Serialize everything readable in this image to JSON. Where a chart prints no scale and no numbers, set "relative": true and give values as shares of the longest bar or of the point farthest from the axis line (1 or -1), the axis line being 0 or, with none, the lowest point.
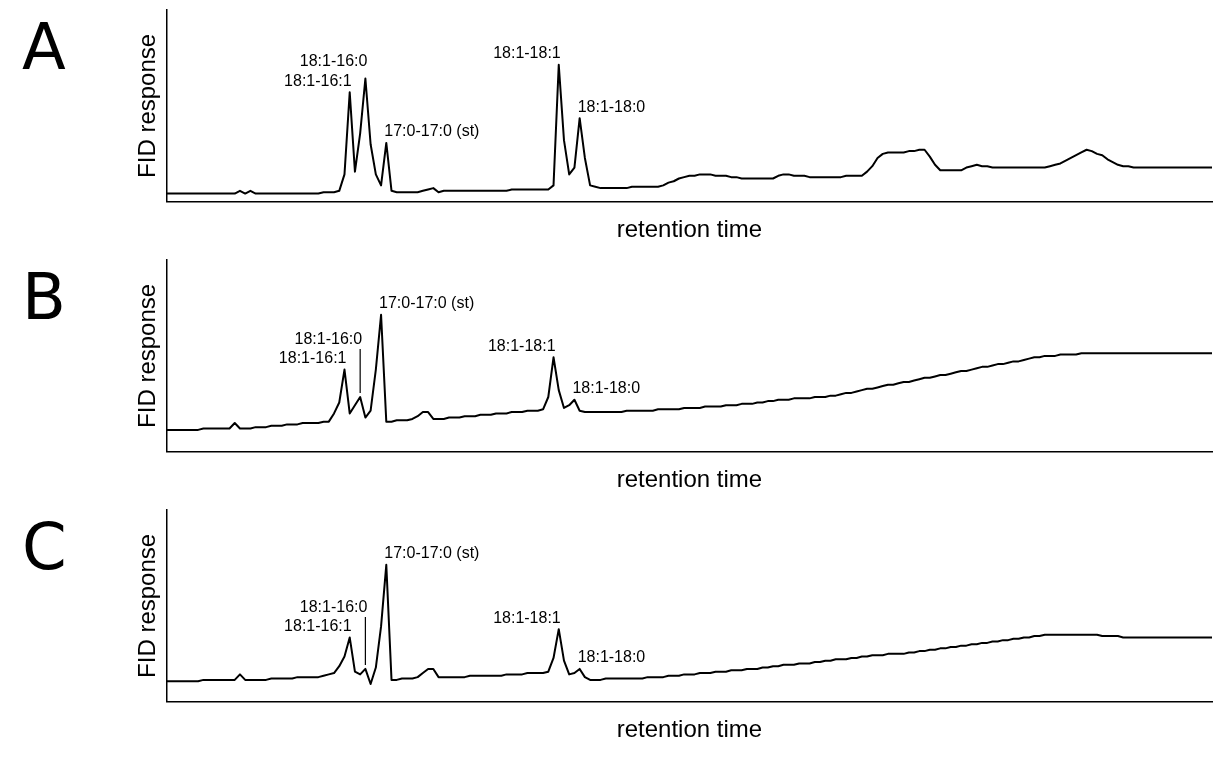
{
  "chart_data": [
    {
      "type": "line",
      "title": "A",
      "xlabel": "retention time",
      "ylabel": "FID response",
      "relative": true,
      "grid": false,
      "legend": false,
      "marker": "none",
      "line_style": "solid",
      "categories": [
        null,
        null,
        null,
        null,
        null,
        null,
        null,
        null,
        null,
        null,
        null,
        null,
        null,
        null,
        null,
        null,
        null,
        null,
        null,
        null,
        null,
        null,
        null,
        null,
        null,
        null,
        null,
        null,
        null,
        null,
        null,
        null,
        null,
        null,
        null,
        null,
        null,
        null,
        null,
        null,
        null,
        null,
        null,
        null,
        null,
        null,
        null,
        null,
        null,
        null,
        null,
        null,
        null,
        null,
        null,
        null,
        null,
        null,
        null,
        null,
        null,
        null,
        null,
        null,
        null,
        null,
        null,
        null,
        null,
        null,
        null,
        null,
        null,
        null,
        null,
        null,
        null,
        null,
        null,
        null,
        null,
        null,
        null,
        null,
        null,
        null,
        null,
        null,
        null,
        null,
        null,
        null,
        null,
        null,
        null,
        null,
        null,
        null,
        null,
        null,
        null,
        null,
        null,
        null,
        null,
        null,
        null,
        null,
        null,
        null,
        null,
        null,
        null,
        null,
        null,
        null,
        null,
        null,
        null,
        null,
        null,
        null,
        null,
        null,
        null,
        null,
        null,
        null,
        null,
        null,
        null,
        null,
        null,
        null,
        null,
        null,
        null,
        null,
        null,
        null,
        null,
        null,
        null,
        null,
        null,
        null,
        null,
        null,
        null,
        null,
        null,
        null,
        null,
        null,
        null,
        null,
        null,
        null,
        null,
        null,
        null,
        null,
        null,
        null,
        null,
        null,
        null,
        null,
        null,
        null,
        null,
        null,
        null,
        null,
        null,
        null,
        null,
        null,
        null,
        null,
        null,
        null,
        null,
        null,
        null,
        null,
        null,
        null,
        null,
        null,
        null,
        null,
        null,
        null,
        null,
        null,
        null,
        null,
        null,
        null,
        null
      ],
      "series": [
        {
          "color": "#000000",
          "values": [
            0.06,
            0.06,
            0.06,
            0.06,
            0.06,
            0.06,
            0.06,
            0.06,
            0.06,
            0.06,
            0.06,
            0.06,
            0.06,
            0.06,
            0.08,
            0.06,
            0.08,
            0.06,
            0.06,
            0.06,
            0.06,
            0.06,
            0.06,
            0.06,
            0.06,
            0.06,
            0.06,
            0.06,
            0.06,
            0.06,
            0.07,
            0.07,
            0.07,
            0.08,
            0.2,
            0.8,
            0.22,
            0.5,
            0.9,
            0.42,
            0.2,
            0.12,
            0.43,
            0.08,
            0.07,
            0.07,
            0.07,
            0.07,
            0.07,
            0.08,
            0.09,
            0.1,
            0.07,
            0.08,
            0.08,
            0.08,
            0.08,
            0.08,
            0.08,
            0.08,
            0.08,
            0.08,
            0.08,
            0.08,
            0.08,
            0.08,
            0.09,
            0.09,
            0.09,
            0.09,
            0.09,
            0.09,
            0.09,
            0.09,
            0.12,
            1.0,
            0.45,
            0.2,
            0.25,
            0.61,
            0.32,
            0.12,
            0.11,
            0.1,
            0.1,
            0.1,
            0.1,
            0.1,
            0.1,
            0.11,
            0.11,
            0.11,
            0.11,
            0.11,
            0.11,
            0.12,
            0.14,
            0.15,
            0.17,
            0.18,
            0.19,
            0.19,
            0.2,
            0.2,
            0.2,
            0.19,
            0.19,
            0.19,
            0.18,
            0.18,
            0.17,
            0.17,
            0.17,
            0.17,
            0.17,
            0.17,
            0.17,
            0.19,
            0.2,
            0.2,
            0.19,
            0.19,
            0.19,
            0.18,
            0.18,
            0.18,
            0.18,
            0.18,
            0.18,
            0.18,
            0.19,
            0.19,
            0.19,
            0.19,
            0.22,
            0.26,
            0.32,
            0.35,
            0.36,
            0.36,
            0.36,
            0.36,
            0.37,
            0.37,
            0.38,
            0.38,
            0.33,
            0.27,
            0.23,
            0.23,
            0.23,
            0.23,
            0.23,
            0.25,
            0.26,
            0.27,
            0.26,
            0.26,
            0.25,
            0.25,
            0.25,
            0.25,
            0.25,
            0.25,
            0.25,
            0.25,
            0.25,
            0.25,
            0.25,
            0.26,
            0.27,
            0.28,
            0.3,
            0.32,
            0.34,
            0.36,
            0.38,
            0.37,
            0.35,
            0.34,
            0.31,
            0.29,
            0.27,
            0.26,
            0.26,
            0.25,
            0.25,
            0.25,
            0.25,
            0.25,
            0.25,
            0.25,
            0.25,
            0.25,
            0.25,
            0.25,
            0.25,
            0.25,
            0.25,
            0.25,
            0.25
          ]
        }
      ],
      "annotations": [
        "18:1-16:1",
        "18:1-16:0",
        "17:0-17:0 (st)",
        "18:1-18:1",
        "18:1-18:0"
      ]
    },
    {
      "type": "line",
      "title": "B",
      "xlabel": "retention time",
      "ylabel": "FID response",
      "relative": true,
      "grid": false,
      "legend": false,
      "marker": "none",
      "line_style": "solid",
      "categories": [
        null,
        null,
        null,
        null,
        null,
        null,
        null,
        null,
        null,
        null,
        null,
        null,
        null,
        null,
        null,
        null,
        null,
        null,
        null,
        null,
        null,
        null,
        null,
        null,
        null,
        null,
        null,
        null,
        null,
        null,
        null,
        null,
        null,
        null,
        null,
        null,
        null,
        null,
        null,
        null,
        null,
        null,
        null,
        null,
        null,
        null,
        null,
        null,
        null,
        null,
        null,
        null,
        null,
        null,
        null,
        null,
        null,
        null,
        null,
        null,
        null,
        null,
        null,
        null,
        null,
        null,
        null,
        null,
        null,
        null,
        null,
        null,
        null,
        null,
        null,
        null,
        null,
        null,
        null,
        null,
        null,
        null,
        null,
        null,
        null,
        null,
        null,
        null,
        null,
        null,
        null,
        null,
        null,
        null,
        null,
        null,
        null,
        null,
        null,
        null,
        null,
        null,
        null,
        null,
        null,
        null,
        null,
        null,
        null,
        null,
        null,
        null,
        null,
        null,
        null,
        null,
        null,
        null,
        null,
        null,
        null,
        null,
        null,
        null,
        null,
        null,
        null,
        null,
        null,
        null,
        null,
        null,
        null,
        null,
        null,
        null,
        null,
        null,
        null,
        null,
        null,
        null,
        null,
        null,
        null,
        null,
        null,
        null,
        null,
        null,
        null,
        null,
        null,
        null,
        null,
        null,
        null,
        null,
        null,
        null,
        null,
        null,
        null,
        null,
        null,
        null,
        null,
        null,
        null,
        null,
        null,
        null,
        null,
        null,
        null,
        null,
        null,
        null,
        null,
        null,
        null,
        null,
        null,
        null,
        null,
        null,
        null,
        null,
        null,
        null,
        null,
        null,
        null,
        null,
        null,
        null,
        null,
        null,
        null,
        null,
        null
      ],
      "series": [
        {
          "color": "#000000",
          "values": [
            0.16,
            0.16,
            0.16,
            0.16,
            0.16,
            0.16,
            0.16,
            0.17,
            0.17,
            0.17,
            0.17,
            0.17,
            0.17,
            0.21,
            0.17,
            0.17,
            0.17,
            0.18,
            0.18,
            0.18,
            0.19,
            0.19,
            0.19,
            0.2,
            0.2,
            0.2,
            0.21,
            0.21,
            0.21,
            0.21,
            0.22,
            0.22,
            0.28,
            0.36,
            0.6,
            0.28,
            0.34,
            0.4,
            0.25,
            0.3,
            0.6,
            1.0,
            0.22,
            0.22,
            0.23,
            0.23,
            0.23,
            0.24,
            0.26,
            0.29,
            0.29,
            0.24,
            0.24,
            0.24,
            0.25,
            0.25,
            0.25,
            0.26,
            0.26,
            0.26,
            0.27,
            0.27,
            0.27,
            0.28,
            0.28,
            0.28,
            0.29,
            0.29,
            0.29,
            0.3,
            0.3,
            0.3,
            0.31,
            0.4,
            0.69,
            0.45,
            0.32,
            0.34,
            0.38,
            0.3,
            0.29,
            0.29,
            0.29,
            0.29,
            0.29,
            0.29,
            0.29,
            0.29,
            0.3,
            0.3,
            0.3,
            0.3,
            0.3,
            0.3,
            0.31,
            0.31,
            0.31,
            0.31,
            0.31,
            0.32,
            0.32,
            0.32,
            0.32,
            0.33,
            0.33,
            0.33,
            0.33,
            0.34,
            0.34,
            0.34,
            0.35,
            0.35,
            0.35,
            0.36,
            0.36,
            0.37,
            0.37,
            0.38,
            0.38,
            0.38,
            0.39,
            0.39,
            0.39,
            0.39,
            0.4,
            0.4,
            0.4,
            0.41,
            0.41,
            0.42,
            0.43,
            0.43,
            0.44,
            0.45,
            0.46,
            0.46,
            0.47,
            0.48,
            0.49,
            0.49,
            0.5,
            0.51,
            0.51,
            0.52,
            0.53,
            0.54,
            0.54,
            0.55,
            0.56,
            0.56,
            0.57,
            0.58,
            0.59,
            0.59,
            0.6,
            0.61,
            0.62,
            0.62,
            0.63,
            0.64,
            0.64,
            0.65,
            0.66,
            0.66,
            0.67,
            0.68,
            0.69,
            0.69,
            0.7,
            0.7,
            0.7,
            0.71,
            0.71,
            0.71,
            0.71,
            0.72,
            0.72,
            0.72,
            0.72,
            0.72,
            0.72,
            0.72,
            0.72,
            0.72,
            0.72,
            0.72,
            0.72,
            0.72,
            0.72,
            0.72,
            0.72,
            0.72,
            0.72,
            0.72,
            0.72,
            0.72,
            0.72,
            0.72,
            0.72,
            0.72,
            0.72
          ]
        }
      ],
      "annotations": [
        "18:1-16:1",
        "18:1-16:0",
        "17:0-17:0 (st)",
        "18:1-18:1",
        "18:1-18:0"
      ]
    },
    {
      "type": "line",
      "title": "C",
      "xlabel": "retention time",
      "ylabel": "FID response",
      "relative": true,
      "grid": false,
      "legend": false,
      "marker": "none",
      "line_style": "solid",
      "categories": [
        null,
        null,
        null,
        null,
        null,
        null,
        null,
        null,
        null,
        null,
        null,
        null,
        null,
        null,
        null,
        null,
        null,
        null,
        null,
        null,
        null,
        null,
        null,
        null,
        null,
        null,
        null,
        null,
        null,
        null,
        null,
        null,
        null,
        null,
        null,
        null,
        null,
        null,
        null,
        null,
        null,
        null,
        null,
        null,
        null,
        null,
        null,
        null,
        null,
        null,
        null,
        null,
        null,
        null,
        null,
        null,
        null,
        null,
        null,
        null,
        null,
        null,
        null,
        null,
        null,
        null,
        null,
        null,
        null,
        null,
        null,
        null,
        null,
        null,
        null,
        null,
        null,
        null,
        null,
        null,
        null,
        null,
        null,
        null,
        null,
        null,
        null,
        null,
        null,
        null,
        null,
        null,
        null,
        null,
        null,
        null,
        null,
        null,
        null,
        null,
        null,
        null,
        null,
        null,
        null,
        null,
        null,
        null,
        null,
        null,
        null,
        null,
        null,
        null,
        null,
        null,
        null,
        null,
        null,
        null,
        null,
        null,
        null,
        null,
        null,
        null,
        null,
        null,
        null,
        null,
        null,
        null,
        null,
        null,
        null,
        null,
        null,
        null,
        null,
        null,
        null,
        null,
        null,
        null,
        null,
        null,
        null,
        null,
        null,
        null,
        null,
        null,
        null,
        null,
        null,
        null,
        null,
        null,
        null,
        null,
        null,
        null,
        null,
        null,
        null,
        null,
        null,
        null,
        null,
        null,
        null,
        null,
        null,
        null,
        null,
        null,
        null,
        null,
        null,
        null,
        null,
        null,
        null,
        null,
        null,
        null,
        null,
        null,
        null,
        null,
        null,
        null,
        null,
        null,
        null,
        null,
        null,
        null,
        null,
        null,
        null
      ],
      "series": [
        {
          "color": "#000000",
          "values": [
            0.15,
            0.15,
            0.15,
            0.15,
            0.15,
            0.15,
            0.15,
            0.16,
            0.16,
            0.16,
            0.16,
            0.16,
            0.16,
            0.16,
            0.2,
            0.16,
            0.16,
            0.16,
            0.16,
            0.16,
            0.17,
            0.17,
            0.17,
            0.17,
            0.17,
            0.18,
            0.18,
            0.18,
            0.18,
            0.18,
            0.19,
            0.2,
            0.21,
            0.26,
            0.33,
            0.47,
            0.22,
            0.2,
            0.24,
            0.13,
            0.25,
            0.55,
            1.0,
            0.16,
            0.16,
            0.17,
            0.17,
            0.17,
            0.18,
            0.21,
            0.24,
            0.24,
            0.18,
            0.18,
            0.18,
            0.18,
            0.18,
            0.18,
            0.19,
            0.19,
            0.19,
            0.19,
            0.19,
            0.19,
            0.19,
            0.2,
            0.2,
            0.2,
            0.2,
            0.21,
            0.21,
            0.21,
            0.21,
            0.22,
            0.32,
            0.53,
            0.3,
            0.2,
            0.21,
            0.24,
            0.18,
            0.16,
            0.16,
            0.16,
            0.17,
            0.17,
            0.17,
            0.17,
            0.17,
            0.17,
            0.17,
            0.17,
            0.18,
            0.18,
            0.18,
            0.18,
            0.19,
            0.19,
            0.19,
            0.2,
            0.2,
            0.2,
            0.21,
            0.21,
            0.21,
            0.22,
            0.22,
            0.22,
            0.23,
            0.23,
            0.23,
            0.24,
            0.24,
            0.24,
            0.25,
            0.25,
            0.26,
            0.26,
            0.27,
            0.27,
            0.27,
            0.28,
            0.28,
            0.28,
            0.29,
            0.29,
            0.3,
            0.3,
            0.31,
            0.31,
            0.31,
            0.32,
            0.32,
            0.33,
            0.33,
            0.34,
            0.34,
            0.34,
            0.35,
            0.35,
            0.35,
            0.35,
            0.36,
            0.36,
            0.37,
            0.37,
            0.38,
            0.38,
            0.39,
            0.39,
            0.4,
            0.4,
            0.41,
            0.41,
            0.42,
            0.42,
            0.43,
            0.43,
            0.44,
            0.44,
            0.45,
            0.45,
            0.46,
            0.46,
            0.47,
            0.47,
            0.48,
            0.48,
            0.49,
            0.49,
            0.49,
            0.49,
            0.49,
            0.49,
            0.49,
            0.49,
            0.49,
            0.49,
            0.49,
            0.48,
            0.48,
            0.48,
            0.48,
            0.47,
            0.47,
            0.47,
            0.47,
            0.47,
            0.47,
            0.47,
            0.47,
            0.47,
            0.47,
            0.47,
            0.47,
            0.47,
            0.47,
            0.47,
            0.47,
            0.47,
            0.47
          ]
        }
      ],
      "annotations": [
        "18:1-16:1",
        "18:1-16:0",
        "17:0-17:0 (st)",
        "18:1-18:1",
        "18:1-18:0"
      ]
    }
  ]
}
